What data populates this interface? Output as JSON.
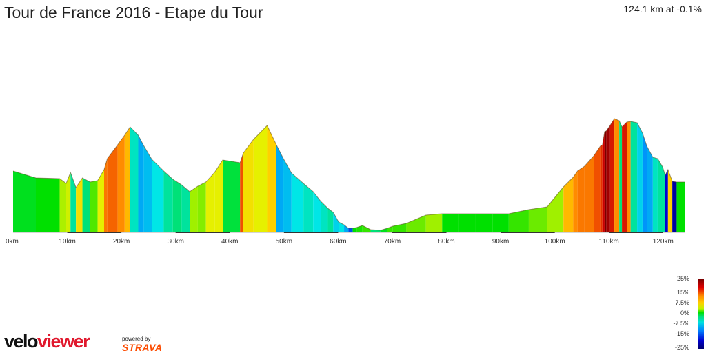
{
  "header": {
    "title": "Tour de France 2016 - Etape du Tour",
    "summary": "124.1 km at -0.1%"
  },
  "branding": {
    "velo": "velo",
    "viewer": "viewer",
    "powered_by": "powered by",
    "strava": "STRAVA"
  },
  "colors": {
    "logo_red": "#e0182d",
    "strava_orange": "#fc4c02"
  },
  "chart_data": {
    "type": "area",
    "title": "Tour de France 2016 - Etape du Tour",
    "xlabel": "",
    "ylabel": "",
    "x_unit": "km",
    "xlim": [
      0,
      124.1
    ],
    "grid": false,
    "legend": "gradient colour scale, bottom-right",
    "x_ticks": [
      "0km",
      "10km",
      "20km",
      "30km",
      "40km",
      "50km",
      "60km",
      "70km",
      "80km",
      "90km",
      "100km",
      "110km",
      "120km"
    ],
    "gradient_scale_labels": [
      "25%",
      "15%",
      "7.5%",
      "0%",
      "-7.5%",
      "-15%",
      "-25%"
    ],
    "profile_km": [
      0,
      4.2,
      8.6,
      9.8,
      10.6,
      11.6,
      12.8,
      14.2,
      15.6,
      16.8,
      17.4,
      19.3,
      20.6,
      21.6,
      23.1,
      24.1,
      25.6,
      27.8,
      29.5,
      31.1,
      32.6,
      34.1,
      35.6,
      37.2,
      38.7,
      41.9,
      42.5,
      44.4,
      46.9,
      48.6,
      49.9,
      51.4,
      53.6,
      55.4,
      56.8,
      58.1,
      59.1,
      60.1,
      61.1,
      61.9,
      62.7,
      63.4,
      64.5,
      66.0,
      67.8,
      69.1,
      70.1,
      72.6,
      76.2,
      79.2,
      82.3,
      85.4,
      88.5,
      91.5,
      95.2,
      98.6,
      101.6,
      103.4,
      104.2,
      105.5,
      107.2,
      108.4,
      108.8,
      109.2,
      109.5,
      110.2,
      111.0,
      111.9,
      112.4,
      113.3,
      114.0,
      115.2,
      116.2,
      117.0,
      118.1,
      119.0,
      119.9,
      120.4,
      120.9,
      121.7,
      122.5,
      124.1
    ],
    "profile_elevation_relative": [
      88,
      78,
      77,
      70,
      86,
      64,
      78,
      72,
      74,
      90,
      106,
      126,
      140,
      152,
      140,
      125,
      105,
      88,
      76,
      68,
      58,
      66,
      72,
      86,
      104,
      100,
      114,
      134,
      154,
      126,
      106,
      85,
      70,
      58,
      44,
      34,
      28,
      14,
      10,
      5,
      5,
      6,
      9,
      3,
      2,
      5,
      8,
      12,
      24,
      26,
      26,
      26,
      26,
      26,
      32,
      36,
      65,
      79,
      88,
      95,
      110,
      124,
      126,
      145,
      146,
      154,
      164,
      161,
      152,
      159,
      160,
      158,
      143,
      124,
      108,
      106,
      94,
      82,
      90,
      73,
      72,
      72
    ],
    "segment_gradient_percent": [
      -0.5,
      0,
      3.5,
      5,
      -3,
      7,
      -2,
      1.5,
      6,
      12,
      13,
      11,
      9,
      -4,
      -8,
      -7,
      -5,
      -3,
      -2,
      -3,
      3,
      2.5,
      6,
      6,
      -1,
      14,
      7,
      6,
      8,
      -8,
      -7,
      -5,
      -4,
      -5,
      -4,
      -3,
      -6,
      -5,
      -8,
      -12,
      0,
      0.5,
      1,
      -2,
      -0.5,
      1,
      1,
      2,
      3,
      0,
      0,
      0,
      0,
      1,
      2,
      3,
      9,
      11,
      12,
      12,
      14,
      16,
      20,
      30,
      25,
      18,
      11,
      -2,
      18,
      11,
      -3,
      -6,
      -9,
      -8,
      -4,
      -3,
      -3,
      -15,
      8,
      -20,
      0
    ]
  }
}
